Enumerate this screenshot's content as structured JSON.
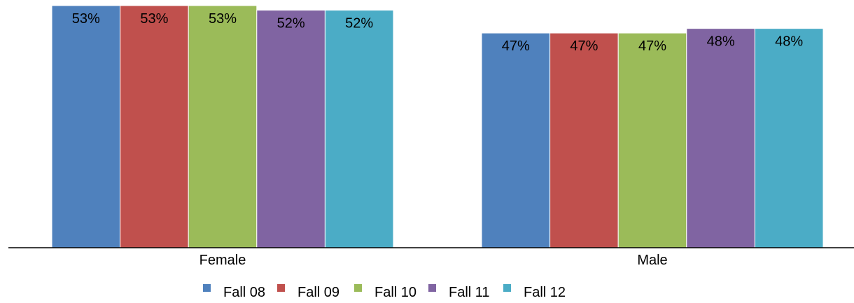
{
  "chart_data": {
    "type": "bar",
    "categories": [
      "Female",
      "Male"
    ],
    "series": [
      {
        "name": "Fall 08",
        "color": "#4F81BD",
        "values": [
          53,
          47
        ]
      },
      {
        "name": "Fall 09",
        "color": "#C0504D",
        "values": [
          53,
          47
        ]
      },
      {
        "name": "Fall 10",
        "color": "#9BBB59",
        "values": [
          53,
          47
        ]
      },
      {
        "name": "Fall 11",
        "color": "#8064A2",
        "values": [
          52,
          48
        ]
      },
      {
        "name": "Fall 12",
        "color": "#4BACC6",
        "values": [
          52,
          48
        ]
      }
    ],
    "data_labels": [
      [
        "53%",
        "47%"
      ],
      [
        "53%",
        "47%"
      ],
      [
        "53%",
        "47%"
      ],
      [
        "52%",
        "48%"
      ],
      [
        "52%",
        "48%"
      ]
    ],
    "ylim": [
      0,
      53
    ],
    "gridlines": false,
    "legend_position": "bottom"
  }
}
